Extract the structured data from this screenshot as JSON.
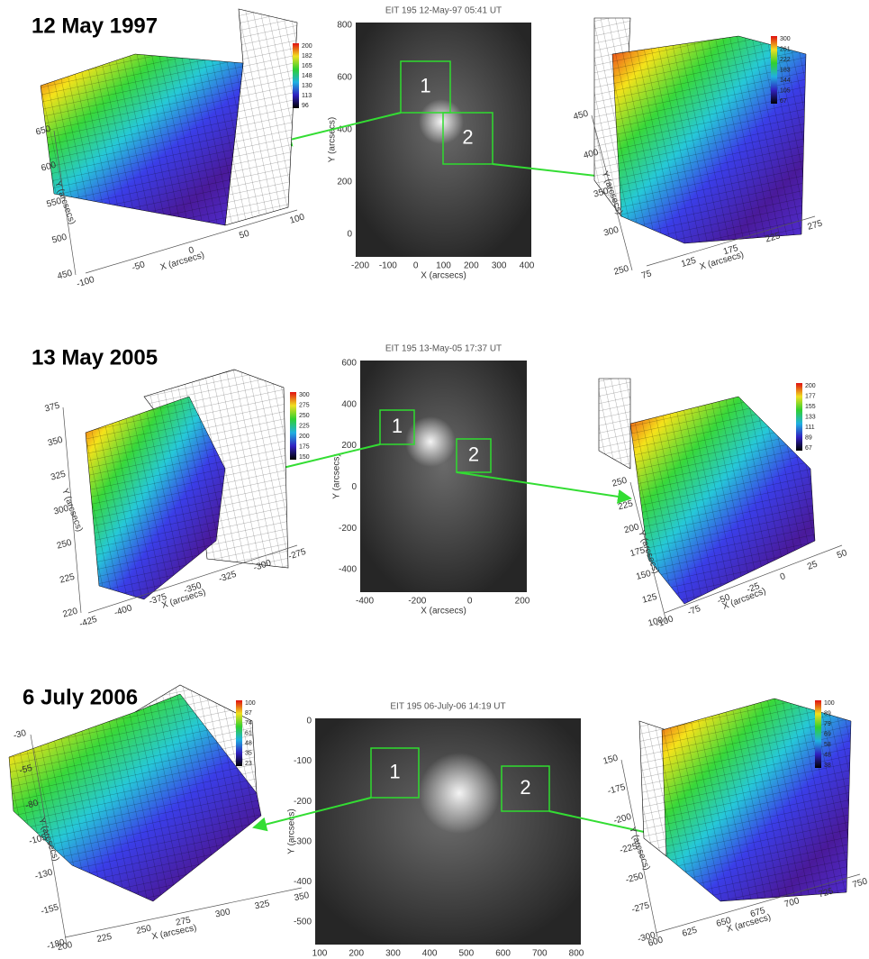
{
  "rows": [
    {
      "title": "12 May 1997",
      "image": {
        "title": "EIT 195 12-May-97 05:41 UT",
        "xticks": [
          "-200",
          "-100",
          "0",
          "100",
          "200",
          "300",
          "400"
        ],
        "yticks": [
          "800",
          "600",
          "400",
          "200",
          "0"
        ],
        "xlabel": "X (arcsecs)",
        "ylabel": "Y (arcsecs)",
        "boxes": [
          "1",
          "2"
        ]
      },
      "left": {
        "colorbar": [
          "200",
          "182",
          "165",
          "148",
          "130",
          "113",
          "96"
        ],
        "xticks": [
          "-100",
          "-50",
          "0",
          "50",
          "100"
        ],
        "yticks": [
          "650",
          "600",
          "550",
          "500",
          "450"
        ],
        "xlabel": "X (arcsecs)",
        "ylabel": "Y (arcsecs)"
      },
      "right": {
        "colorbar": [
          "300",
          "261",
          "222",
          "183",
          "144",
          "105",
          "67"
        ],
        "xticks": [
          "75",
          "125",
          "175",
          "225",
          "275"
        ],
        "yticks": [
          "450",
          "400",
          "350",
          "300",
          "250"
        ],
        "xlabel": "X (arcsecs)",
        "ylabel": "Y (arcsecs)"
      }
    },
    {
      "title": "13 May 2005",
      "image": {
        "title": "EIT 195 13-May-05 17:37 UT",
        "xticks": [
          "-400",
          "-200",
          "0",
          "200"
        ],
        "yticks": [
          "600",
          "400",
          "200",
          "0",
          "-200",
          "-400"
        ],
        "xlabel": "X (arcsecs)",
        "ylabel": "Y (arcsecs)",
        "boxes": [
          "1",
          "2"
        ]
      },
      "left": {
        "colorbar": [
          "300",
          "275",
          "250",
          "225",
          "200",
          "175",
          "150"
        ],
        "xticks": [
          "-425",
          "-400",
          "-375",
          "-350",
          "-325",
          "-300",
          "-275"
        ],
        "yticks": [
          "375",
          "350",
          "325",
          "300",
          "250",
          "225",
          "220"
        ],
        "xlabel": "X (arcsecs)",
        "ylabel": "Y (arcsecs)"
      },
      "right": {
        "colorbar": [
          "200",
          "177",
          "155",
          "133",
          "111",
          "89",
          "67"
        ],
        "xticks": [
          "-100",
          "-75",
          "-50",
          "-25",
          "0",
          "25",
          "50"
        ],
        "yticks": [
          "250",
          "225",
          "200",
          "175",
          "150",
          "125",
          "100"
        ],
        "xlabel": "X (arcsecs)",
        "ylabel": "Y (arcsecs)"
      }
    },
    {
      "title": "6 July 2006",
      "image": {
        "title": "EIT 195 06-July-06 14:19 UT",
        "xticks": [
          "100",
          "200",
          "300",
          "400",
          "500",
          "600",
          "700",
          "800"
        ],
        "yticks": [
          "0",
          "-100",
          "-200",
          "-300",
          "-400",
          "-500"
        ],
        "xlabel": "X (arcsecs)",
        "ylabel": "Y (arcsecs)",
        "boxes": [
          "1",
          "2"
        ]
      },
      "left": {
        "colorbar": [
          "100",
          "87",
          "74",
          "61",
          "48",
          "35",
          "23"
        ],
        "xticks": [
          "200",
          "225",
          "250",
          "275",
          "300",
          "325",
          "350"
        ],
        "yticks": [
          "-30",
          "-55",
          "-80",
          "-105",
          "-130",
          "-155",
          "-180"
        ],
        "xlabel": "X (arcsecs)",
        "ylabel": "Y (arcsecs)"
      },
      "right": {
        "colorbar": [
          "100",
          "89",
          "79",
          "69",
          "58",
          "48",
          "38"
        ],
        "xticks": [
          "600",
          "625",
          "650",
          "675",
          "700",
          "725",
          "750"
        ],
        "yticks": [
          "150",
          "-175",
          "-200",
          "-225",
          "-250",
          "-275",
          "-300"
        ],
        "xlabel": "X (arcsecs)",
        "ylabel": "Y (arcsecs)"
      }
    }
  ]
}
